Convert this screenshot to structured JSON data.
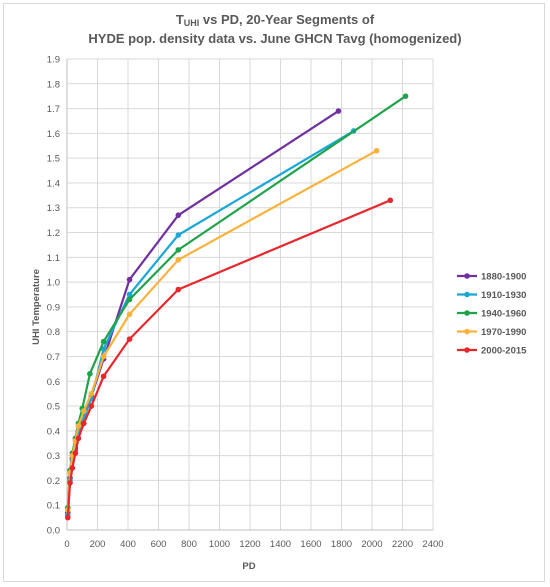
{
  "chart_data": {
    "type": "line",
    "title_main": "T",
    "title_sub": "UHI",
    "title_rest": " vs PD, 20-Year Segments of",
    "title_line2": "HYDE pop. density data vs. June GHCN Tavg (homogenized)",
    "xlabel": "PD",
    "ylabel": "UHI Temperature",
    "xlim": [
      0,
      2400
    ],
    "ylim": [
      0,
      1.9
    ],
    "xticks": [
      "0",
      "200",
      "400",
      "600",
      "800",
      "1000",
      "1200",
      "1400",
      "1600",
      "1800",
      "2000",
      "2200",
      "2400"
    ],
    "yticks": [
      "0.0",
      "0.1",
      "0.2",
      "0.3",
      "0.4",
      "0.5",
      "0.6",
      "0.7",
      "0.8",
      "0.9",
      "1.0",
      "1.1",
      "1.2",
      "1.3",
      "1.4",
      "1.5",
      "1.6",
      "1.7",
      "1.8",
      "1.9"
    ],
    "grid": true,
    "legend_position": "right",
    "series": [
      {
        "name": "1880-1900",
        "color": "#7030a0",
        "x": [
          5,
          20,
          35,
          55,
          75,
          110,
          160,
          240,
          410,
          730,
          1780
        ],
        "y": [
          0.07,
          0.21,
          0.29,
          0.33,
          0.4,
          0.46,
          0.54,
          0.69,
          1.01,
          1.27,
          1.69
        ]
      },
      {
        "name": "1910-1930",
        "color": "#1aa7d8",
        "x": [
          5,
          20,
          35,
          55,
          75,
          110,
          160,
          240,
          410,
          730,
          1880
        ],
        "y": [
          0.06,
          0.2,
          0.28,
          0.32,
          0.39,
          0.45,
          0.53,
          0.73,
          0.95,
          1.19,
          1.61
        ]
      },
      {
        "name": "1940-1960",
        "color": "#1ea34a",
        "x": [
          5,
          20,
          35,
          55,
          75,
          100,
          150,
          240,
          410,
          730,
          2220
        ],
        "y": [
          0.09,
          0.24,
          0.31,
          0.37,
          0.43,
          0.49,
          0.63,
          0.76,
          0.93,
          1.13,
          1.75
        ]
      },
      {
        "name": "1970-1990",
        "color": "#f9b23c",
        "x": [
          5,
          20,
          35,
          55,
          75,
          110,
          160,
          240,
          410,
          730,
          2030
        ],
        "y": [
          0.08,
          0.23,
          0.3,
          0.36,
          0.42,
          0.48,
          0.55,
          0.7,
          0.87,
          1.09,
          1.53
        ]
      },
      {
        "name": "2000-2015",
        "color": "#e8272c",
        "x": [
          5,
          20,
          35,
          55,
          75,
          110,
          160,
          240,
          410,
          730,
          2120
        ],
        "y": [
          0.05,
          0.19,
          0.25,
          0.31,
          0.37,
          0.43,
          0.5,
          0.62,
          0.77,
          0.97,
          1.33
        ]
      }
    ]
  }
}
